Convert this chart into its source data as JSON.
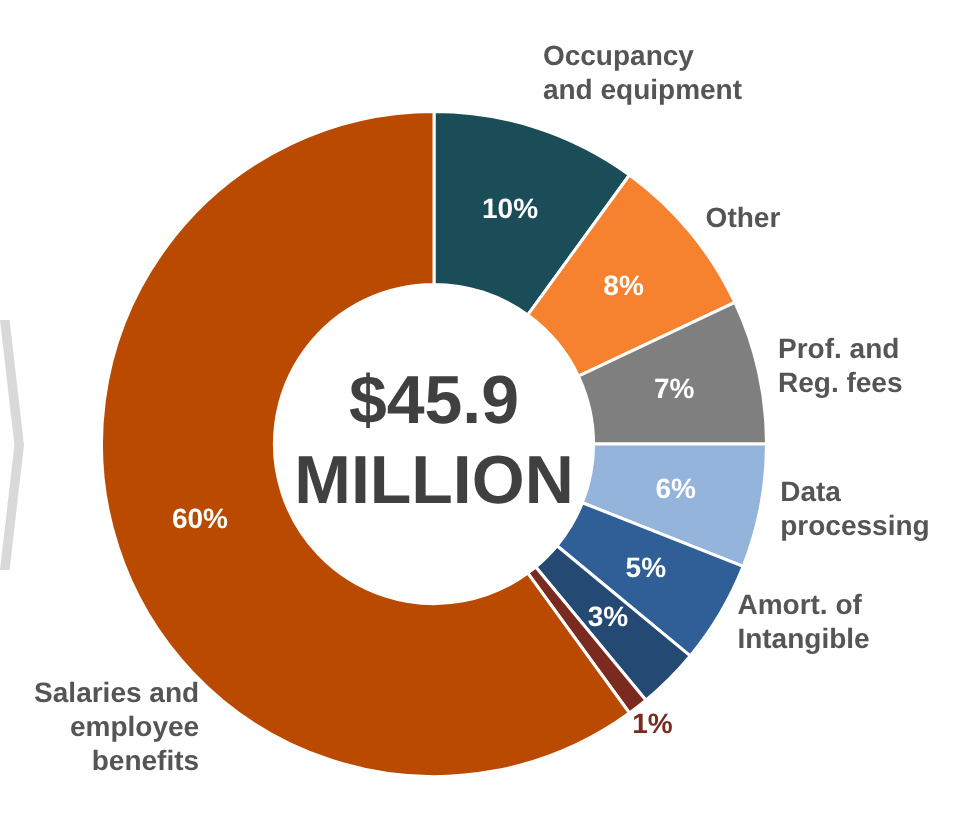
{
  "chart_data": {
    "type": "donut",
    "categories": [
      "Occupancy and equipment",
      "Other",
      "Prof. and Reg. fees",
      "Data processing",
      "Amort. of Intangible",
      null,
      null,
      "Salaries and employee benefits"
    ],
    "values": [
      10,
      8,
      7,
      6,
      5,
      3,
      1,
      60
    ],
    "colors": [
      "#1b4d59",
      "#f6812f",
      "#7f7f7f",
      "#95b4db",
      "#2f5f96",
      "#244a74",
      "#7a2a1f",
      "#b94a00"
    ],
    "value_labels": [
      "10%",
      "8%",
      "7%",
      "6%",
      "5%",
      "3%",
      "1%",
      "60%"
    ],
    "annotations": [
      "$45.9 MILLION"
    ],
    "legend": false
  }
}
